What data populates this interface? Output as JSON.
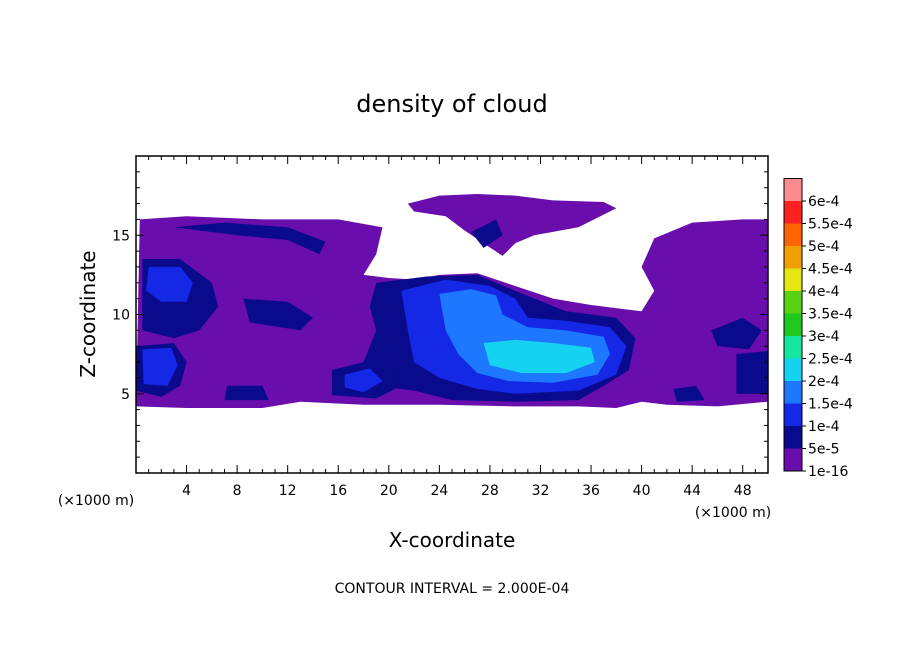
{
  "chart_data": {
    "type": "heatmap",
    "title": "density of cloud",
    "xlabel": "X-coordinate",
    "ylabel": "Z-coordinate",
    "x_unit_left": "(×1000 m)",
    "x_unit_right": "(×1000 m)",
    "xlim": [
      0,
      50
    ],
    "ylim": [
      0,
      20
    ],
    "x_ticks": [
      4,
      8,
      12,
      16,
      20,
      24,
      28,
      32,
      36,
      40,
      44,
      48
    ],
    "y_ticks": [
      5,
      10,
      15
    ],
    "footer": "CONTOUR INTERVAL = 2.000E-04",
    "colorbar": {
      "levels": [
        "1e-16",
        "5e-5",
        "1e-4",
        "1.5e-4",
        "2e-4",
        "2.5e-4",
        "3e-4",
        "3.5e-4",
        "4e-4",
        "4.5e-4",
        "5e-4",
        "5.5e-4",
        "6e-4"
      ],
      "colors": [
        "#6a0dad",
        "#0a0a8c",
        "#1428e6",
        "#1e78ff",
        "#14d2f0",
        "#14e6a0",
        "#1ec81e",
        "#5ad214",
        "#e6e614",
        "#f0a000",
        "#ff6400",
        "#ff2020",
        "#ff8c8c"
      ]
    },
    "regions": [
      {
        "level": "1e-16",
        "points": [
          [
            0.3,
            16
          ],
          [
            4,
            16.2
          ],
          [
            10,
            16
          ],
          [
            16,
            16
          ],
          [
            19.5,
            15.5
          ],
          [
            19,
            13.8
          ],
          [
            18,
            12.5
          ],
          [
            20,
            12.3
          ],
          [
            22,
            12.2
          ],
          [
            24,
            12.5
          ],
          [
            27,
            12.6
          ],
          [
            30,
            11.8
          ],
          [
            33,
            11
          ],
          [
            36,
            10.6
          ],
          [
            40,
            10.2
          ],
          [
            41,
            11.5
          ],
          [
            40,
            13
          ],
          [
            41,
            14.8
          ],
          [
            44,
            15.8
          ],
          [
            48,
            16
          ],
          [
            50,
            16
          ],
          [
            50,
            4.5
          ],
          [
            46,
            4.2
          ],
          [
            42,
            4.3
          ],
          [
            40,
            4.5
          ],
          [
            38,
            4.1
          ],
          [
            35,
            4.2
          ],
          [
            30,
            4.2
          ],
          [
            24,
            4.3
          ],
          [
            18,
            4.3
          ],
          [
            13,
            4.5
          ],
          [
            10,
            4.1
          ],
          [
            4,
            4.1
          ],
          [
            0,
            4.2
          ]
        ]
      },
      {
        "level": "1e-16",
        "points": [
          [
            21.5,
            17
          ],
          [
            24,
            17.5
          ],
          [
            27,
            17.6
          ],
          [
            30,
            17.5
          ],
          [
            33,
            17.2
          ],
          [
            37,
            17.1
          ],
          [
            38,
            16.7
          ],
          [
            35,
            15.5
          ],
          [
            31.5,
            15
          ],
          [
            30,
            14.5
          ],
          [
            29,
            13.7
          ],
          [
            27.5,
            14.5
          ],
          [
            26,
            15.3
          ],
          [
            24.5,
            16.2
          ],
          [
            22,
            16.5
          ]
        ]
      },
      {
        "level": "5e-5",
        "points": [
          [
            3,
            15.5
          ],
          [
            8,
            15
          ],
          [
            12,
            14.7
          ],
          [
            14.5,
            13.8
          ],
          [
            15,
            14.6
          ],
          [
            12,
            15.5
          ],
          [
            7,
            15.8
          ]
        ]
      },
      {
        "level": "5e-5",
        "points": [
          [
            0.5,
            13.5
          ],
          [
            3.5,
            13.5
          ],
          [
            6,
            12
          ],
          [
            6.5,
            10.5
          ],
          [
            5,
            9
          ],
          [
            3,
            8.5
          ],
          [
            0.5,
            9
          ]
        ]
      },
      {
        "level": "5e-5",
        "points": [
          [
            8.5,
            11
          ],
          [
            12,
            10.8
          ],
          [
            14,
            9.8
          ],
          [
            13,
            9
          ],
          [
            9,
            9.5
          ]
        ]
      },
      {
        "level": "5e-5",
        "points": [
          [
            19,
            12
          ],
          [
            23,
            12.4
          ],
          [
            27,
            12.5
          ],
          [
            30,
            11.5
          ],
          [
            34,
            10.2
          ],
          [
            38,
            9.8
          ],
          [
            39.5,
            8.5
          ],
          [
            39,
            6.5
          ],
          [
            37,
            5.5
          ],
          [
            35,
            4.6
          ],
          [
            30,
            4.5
          ],
          [
            25,
            4.6
          ],
          [
            22,
            5.2
          ],
          [
            19,
            5.5
          ],
          [
            18,
            7
          ],
          [
            19,
            9
          ],
          [
            18.5,
            10.5
          ]
        ]
      },
      {
        "level": "5e-5",
        "points": [
          [
            0,
            8
          ],
          [
            3,
            8.2
          ],
          [
            4,
            7
          ],
          [
            3.5,
            5.5
          ],
          [
            2,
            4.8
          ],
          [
            0,
            5.2
          ]
        ]
      },
      {
        "level": "5e-5",
        "points": [
          [
            15.5,
            6.5
          ],
          [
            18,
            7
          ],
          [
            20,
            6.8
          ],
          [
            21,
            5.5
          ],
          [
            19,
            4.7
          ],
          [
            15.5,
            4.9
          ]
        ]
      },
      {
        "level": "5e-5",
        "points": [
          [
            7.2,
            5.5
          ],
          [
            10,
            5.5
          ],
          [
            10.5,
            4.6
          ],
          [
            7,
            4.6
          ]
        ]
      },
      {
        "level": "5e-5",
        "points": [
          [
            45.5,
            9
          ],
          [
            48,
            9.8
          ],
          [
            49.5,
            9
          ],
          [
            48.5,
            7.8
          ],
          [
            46,
            8
          ]
        ]
      },
      {
        "level": "5e-5",
        "points": [
          [
            47.5,
            7.5
          ],
          [
            50,
            7.7
          ],
          [
            50,
            5
          ],
          [
            47.5,
            5
          ]
        ]
      },
      {
        "level": "5e-5",
        "points": [
          [
            42.5,
            5.3
          ],
          [
            44.3,
            5.5
          ],
          [
            45,
            4.6
          ],
          [
            42.8,
            4.5
          ]
        ]
      },
      {
        "level": "5e-5",
        "points": [
          [
            26.5,
            15.2
          ],
          [
            28.5,
            16
          ],
          [
            29,
            15
          ],
          [
            27.5,
            14.2
          ]
        ]
      },
      {
        "level": "1e-4",
        "points": [
          [
            1,
            13
          ],
          [
            3.5,
            13
          ],
          [
            4.5,
            12
          ],
          [
            4,
            10.8
          ],
          [
            2,
            10.8
          ],
          [
            0.8,
            11.5
          ]
        ]
      },
      {
        "level": "1e-4",
        "points": [
          [
            0.5,
            7.8
          ],
          [
            2.8,
            7.9
          ],
          [
            3.3,
            6.8
          ],
          [
            2.5,
            5.5
          ],
          [
            0.6,
            5.6
          ]
        ]
      },
      {
        "level": "1e-4",
        "points": [
          [
            21,
            11.5
          ],
          [
            24.5,
            12.2
          ],
          [
            28,
            11.8
          ],
          [
            30,
            11
          ],
          [
            31,
            9.8
          ],
          [
            34,
            9.6
          ],
          [
            37.5,
            9.2
          ],
          [
            38.8,
            8
          ],
          [
            38,
            6.2
          ],
          [
            35,
            5.2
          ],
          [
            30,
            5
          ],
          [
            27,
            5.3
          ],
          [
            24,
            6
          ],
          [
            22,
            7
          ],
          [
            21.5,
            9
          ]
        ]
      },
      {
        "level": "1e-4",
        "points": [
          [
            16.5,
            6.2
          ],
          [
            18.5,
            6.6
          ],
          [
            19.5,
            5.8
          ],
          [
            18,
            5.1
          ],
          [
            16.5,
            5.4
          ]
        ]
      },
      {
        "level": "1.5e-4",
        "points": [
          [
            24,
            11.3
          ],
          [
            26.5,
            11.6
          ],
          [
            28.5,
            11.2
          ],
          [
            29,
            10
          ],
          [
            31,
            9.2
          ],
          [
            34,
            9
          ],
          [
            37,
            8.6
          ],
          [
            37.5,
            7.5
          ],
          [
            36.5,
            6.2
          ],
          [
            33,
            5.7
          ],
          [
            29.5,
            5.8
          ],
          [
            27,
            6.3
          ],
          [
            25.5,
            7.5
          ],
          [
            24.5,
            9
          ]
        ]
      },
      {
        "level": "2e-4",
        "points": [
          [
            27.5,
            8.2
          ],
          [
            30,
            8.4
          ],
          [
            33,
            8.2
          ],
          [
            36,
            7.9
          ],
          [
            36.3,
            7
          ],
          [
            34,
            6.3
          ],
          [
            30.5,
            6.3
          ],
          [
            28,
            6.8
          ]
        ]
      }
    ]
  }
}
